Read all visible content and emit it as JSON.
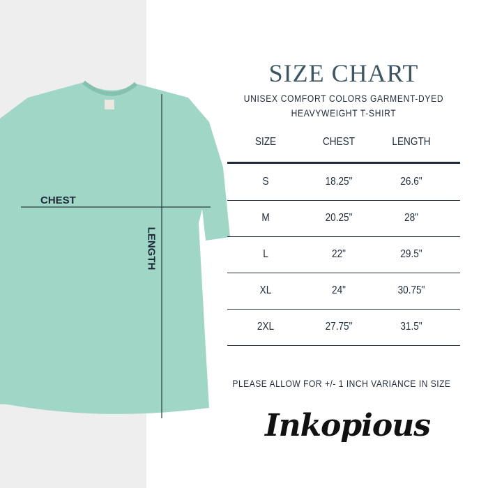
{
  "title": "SIZE CHART",
  "subtitle_line1": "UNISEX COMFORT COLORS GARMENT-DYED",
  "subtitle_line2": "HEAVYWEIGHT T-SHIRT",
  "shirt": {
    "color": "#9fd6c6",
    "chest_label": "CHEST",
    "length_label": "LENGTH"
  },
  "table": {
    "headers": [
      "SIZE",
      "CHEST",
      "LENGTH"
    ],
    "rows": [
      [
        "S",
        "18.25\"",
        "26.6\""
      ],
      [
        "M",
        "20.25\"",
        "28\""
      ],
      [
        "L",
        "22\"",
        "29.5\""
      ],
      [
        "XL",
        "24\"",
        "30.75\""
      ],
      [
        "2XL",
        "27.75\"",
        "31.5\""
      ]
    ]
  },
  "note": "PLEASE ALLOW FOR +/- 1 INCH VARIANCE IN SIZE",
  "brand": "Inkopious"
}
